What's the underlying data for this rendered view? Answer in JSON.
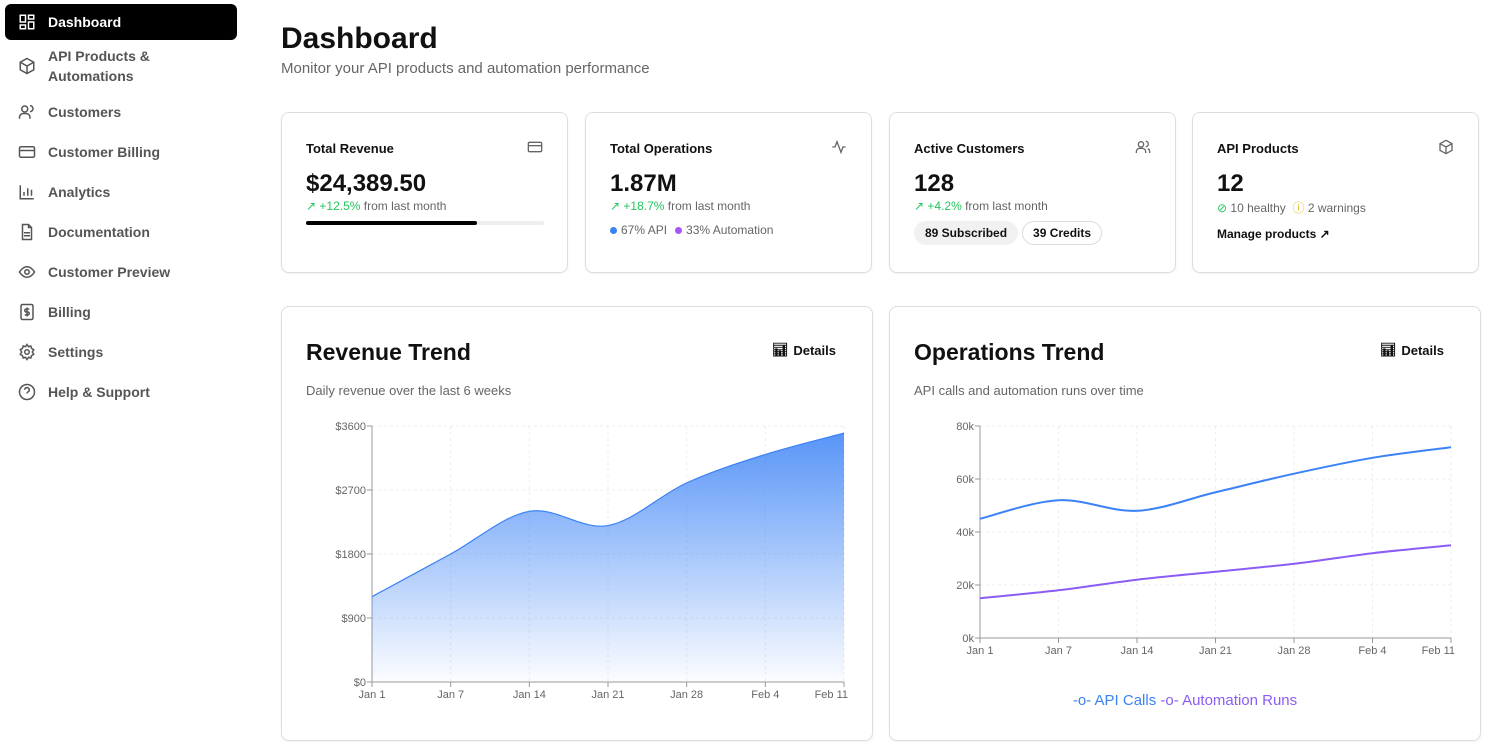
{
  "sidebar": {
    "items": [
      {
        "label": "Dashboard",
        "icon": "dashboard-icon",
        "active": true
      },
      {
        "label": "API Products &\nAutomations",
        "icon": "package-icon"
      },
      {
        "label": "Customers",
        "icon": "users-icon"
      },
      {
        "label": "Customer Billing",
        "icon": "credit-card-icon"
      },
      {
        "label": "Analytics",
        "icon": "bar-chart-icon"
      },
      {
        "label": "Documentation",
        "icon": "document-icon"
      },
      {
        "label": "Customer Preview",
        "icon": "eye-icon"
      },
      {
        "label": "Billing",
        "icon": "dollar-icon"
      },
      {
        "label": "Settings",
        "icon": "gear-icon"
      },
      {
        "label": "Help & Support",
        "icon": "help-icon"
      }
    ]
  },
  "header": {
    "title": "Dashboard",
    "subtitle": "Monitor your API products and automation performance"
  },
  "stats": {
    "revenue": {
      "title": "Total Revenue",
      "value": "$24,389.50",
      "change": "+12.5%",
      "change_suffix": "from last month",
      "progress": 0.72
    },
    "operations": {
      "title": "Total Operations",
      "value": "1.87M",
      "change": "+18.7%",
      "change_suffix": "from last month",
      "api": "67% API",
      "automation": "33% Automation"
    },
    "customers": {
      "title": "Active Customers",
      "value": "128",
      "change": "+4.2%",
      "change_suffix": "from last month",
      "subscribed": "89 Subscribed",
      "credits": "39 Credits"
    },
    "products": {
      "title": "API Products",
      "value": "12",
      "healthy": "10 healthy",
      "warnings": "2 warnings",
      "manage": "Manage products ↗"
    }
  },
  "colors": {
    "blue": "#3b82f6",
    "purple": "#8b5cf6",
    "green": "#22c55e",
    "amber": "#eab308"
  },
  "revenue_chart": {
    "title": "Revenue Trend",
    "description": "Daily revenue over the last 6 weeks",
    "details": "Details"
  },
  "ops_chart": {
    "title": "Operations Trend",
    "description": "API calls and automation runs over time",
    "details": "Details"
  },
  "chart_data": [
    {
      "type": "area",
      "categories": [
        "Jan 1",
        "Jan 7",
        "Jan 14",
        "Jan 21",
        "Jan 28",
        "Feb 4",
        "Feb 11"
      ],
      "values": [
        1200,
        1800,
        2400,
        2200,
        2800,
        3200,
        3500
      ],
      "yticks": [
        "$0",
        "$900",
        "$1800",
        "$2700",
        "$3600"
      ],
      "ylim": [
        0,
        3600
      ],
      "grid": true
    },
    {
      "type": "line",
      "categories": [
        "Jan 1",
        "Jan 7",
        "Jan 14",
        "Jan 21",
        "Jan 28",
        "Feb 4",
        "Feb 11"
      ],
      "series": [
        {
          "name": "API Calls",
          "values": [
            45000,
            52000,
            48000,
            55000,
            62000,
            68000,
            72000
          ]
        },
        {
          "name": "Automation Runs",
          "values": [
            15000,
            18000,
            22000,
            25000,
            28000,
            32000,
            35000
          ]
        }
      ],
      "yticks": [
        "0k",
        "20k",
        "40k",
        "60k",
        "80k"
      ],
      "ylim": [
        0,
        80000
      ],
      "grid": true,
      "legend": "bottom"
    }
  ]
}
